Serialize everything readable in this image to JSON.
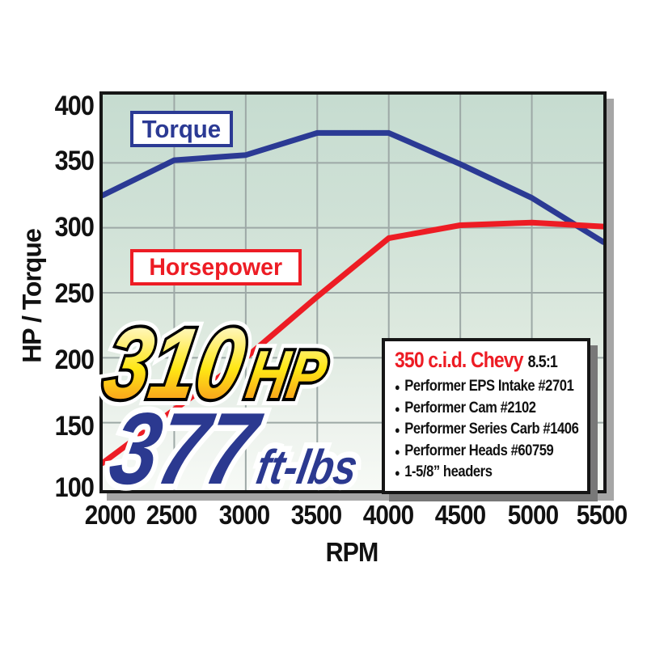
{
  "y_axis": {
    "label": "HP / Torque",
    "ticks": [
      400,
      350,
      300,
      250,
      200,
      150,
      100
    ]
  },
  "x_axis": {
    "label": "RPM",
    "ticks": [
      2000,
      2500,
      3000,
      3500,
      4000,
      4500,
      5000,
      5500
    ]
  },
  "callouts": {
    "hp_value": "310",
    "hp_unit": "HP",
    "torque_value": "377",
    "torque_unit": "ft-lbs"
  },
  "spec_box": {
    "title": "350 c.i.d. Chevy",
    "compression_ratio": "8.5:1",
    "items": [
      "Performer EPS Intake #2701",
      "Performer Cam #2102",
      "Performer Series Carb #1406",
      "Performer Heads #60759",
      "1-5/8” headers"
    ]
  },
  "icons": {
    "bullet": "●"
  },
  "colors": {
    "torque_blue": "#2b3a94",
    "horsepower_red": "#ed1c24",
    "callout_navy": "#2b3990",
    "gold_gradient_top": "#fffbdc",
    "gold_gradient_mid": "#ffe714",
    "gold_gradient_bottom": "#f6921e",
    "plot_background_top": "#c6dcd0",
    "plot_background_bottom": "#f7faf6",
    "gridline": "#9da8a6",
    "border_black": "#161616",
    "plot_shadow": "#a6a6a6",
    "specbox_shadow": "#787878"
  },
  "chart_data": {
    "type": "line",
    "x": [
      2000,
      2500,
      3000,
      3500,
      4000,
      4500,
      5000,
      5500
    ],
    "series": [
      {
        "name": "Torque",
        "color": "#2b3a94",
        "values": [
          325,
          352,
          356,
          373,
          373,
          349,
          323,
          289
        ]
      },
      {
        "name": "Horsepower",
        "color": "#ed1c24",
        "values": [
          119,
          160,
          200,
          247,
          292,
          302,
          304,
          301
        ]
      }
    ],
    "xlabel": "RPM",
    "ylabel": "HP / Torque",
    "xlim": [
      2000,
      5500
    ],
    "ylim": [
      100,
      400
    ],
    "grid": true,
    "legend_position": "on-plot-label-boxes",
    "annotations": [
      "310 HP",
      "377 ft-lbs"
    ]
  }
}
